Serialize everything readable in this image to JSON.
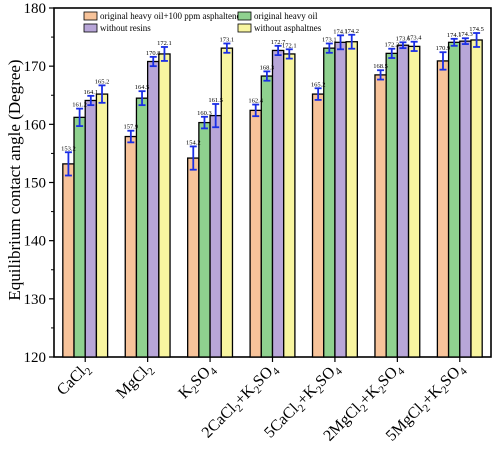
{
  "chart_data": {
    "type": "bar",
    "title": "",
    "xlabel": "",
    "ylabel": "Equilibrium contact angle (Degree)",
    "ylim": [
      120,
      180
    ],
    "yticks": [
      120,
      130,
      140,
      150,
      160,
      170,
      180
    ],
    "categories": [
      [
        "CaCl",
        "2"
      ],
      [
        "MgCl",
        "2"
      ],
      [
        "K",
        "2",
        "SO",
        "4"
      ],
      [
        "2CaCl",
        "2",
        "+K",
        "2",
        "SO",
        "4"
      ],
      [
        "5CaCl",
        "2",
        "+K",
        "2",
        "SO",
        "4"
      ],
      [
        "2MgCl",
        "2",
        "+K",
        "2",
        "SO",
        "4"
      ],
      [
        "5MgCl",
        "2",
        "+K",
        "2",
        "SO",
        "4"
      ]
    ],
    "series": [
      {
        "name": "original heavy oil+100 ppm asphaltenes",
        "color": "#f7c39a",
        "values": [
          153.2,
          157.9,
          154.2,
          162.4,
          165.2,
          168.5,
          170.9
        ],
        "errors": [
          2.0,
          1.0,
          2.0,
          1.0,
          1.0,
          0.8,
          1.5
        ]
      },
      {
        "name": "original heavy oil",
        "color": "#8fd18f",
        "values": [
          161.2,
          164.5,
          160.3,
          168.3,
          173.1,
          172.2,
          174.1
        ],
        "errors": [
          1.5,
          1.2,
          1.0,
          0.8,
          0.8,
          0.8,
          0.6
        ]
      },
      {
        "name": "without resins",
        "color": "#b8a6d8",
        "values": [
          164.1,
          170.8,
          161.5,
          172.7,
          174.1,
          173.6,
          174.3
        ],
        "errors": [
          0.8,
          0.8,
          2.0,
          0.8,
          1.2,
          0.5,
          0.5
        ]
      },
      {
        "name": "without asphaltnes",
        "color": "#f8f5a0",
        "values": [
          165.2,
          172.1,
          173.1,
          172.1,
          174.2,
          173.4,
          174.5
        ],
        "errors": [
          1.5,
          1.2,
          0.8,
          0.8,
          1.2,
          0.8,
          1.2
        ]
      }
    ],
    "value_labels": [
      [
        "153.2",
        "161.2",
        "164.1",
        "165.2"
      ],
      [
        "157.9",
        "164.5",
        "170.8",
        "172.1"
      ],
      [
        "154.2",
        "160.3",
        "161.5",
        "173.1"
      ],
      [
        "162.4",
        "168.3",
        "172.7",
        "172.1"
      ],
      [
        "165.2",
        "173.1",
        "174.1",
        "174.2"
      ],
      [
        "168.5",
        "172.2",
        "173.6",
        "173.4"
      ],
      [
        "170.9",
        "174.1",
        "174.3",
        "174.5"
      ]
    ],
    "legend_position": "top-left, inside plot",
    "error_bar_color": "#1a2ee6",
    "grid": false
  }
}
